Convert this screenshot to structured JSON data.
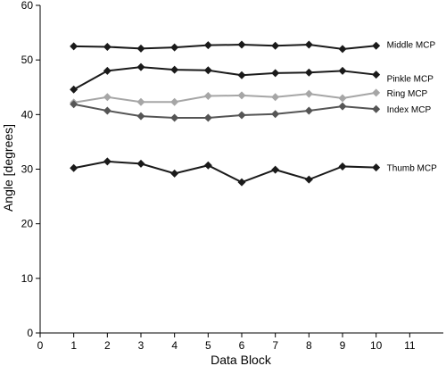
{
  "chart_data": {
    "type": "line",
    "xlabel": "Data Block",
    "ylabel": "Angle [degrees]",
    "xlim": [
      0,
      12
    ],
    "ylim": [
      0,
      60
    ],
    "xticks": [
      0,
      1,
      2,
      3,
      4,
      5,
      6,
      7,
      8,
      9,
      10,
      11
    ],
    "yticks": [
      0,
      10,
      20,
      30,
      40,
      50,
      60
    ],
    "grid": false,
    "legend": "inline-right",
    "x": [
      1,
      2,
      3,
      4,
      5,
      6,
      7,
      8,
      9,
      10
    ],
    "series": [
      {
        "name": "Middle MCP",
        "color": "#1a1a1a",
        "values": [
          52.5,
          52.4,
          52.1,
          52.3,
          52.7,
          52.8,
          52.6,
          52.8,
          52.0,
          52.6
        ]
      },
      {
        "name": "Pinkle MCP",
        "color": "#1a1a1a",
        "values": [
          44.6,
          48.0,
          48.7,
          48.2,
          48.1,
          47.2,
          47.6,
          47.7,
          48.0,
          47.3
        ]
      },
      {
        "name": "Ring MCP",
        "color": "#a6a6a6",
        "values": [
          42.2,
          43.2,
          42.3,
          42.3,
          43.4,
          43.5,
          43.2,
          43.8,
          43.0,
          44.0
        ]
      },
      {
        "name": "Index MCP",
        "color": "#555555",
        "values": [
          41.9,
          40.7,
          39.7,
          39.4,
          39.4,
          39.9,
          40.1,
          40.7,
          41.5,
          41.0
        ]
      },
      {
        "name": "Thumb MCP",
        "color": "#1a1a1a",
        "values": [
          30.2,
          31.4,
          31.0,
          29.2,
          30.7,
          27.6,
          29.9,
          28.1,
          30.5,
          30.3
        ]
      }
    ]
  }
}
